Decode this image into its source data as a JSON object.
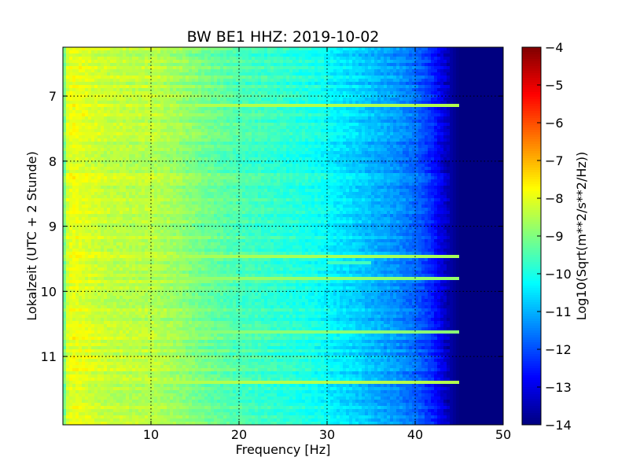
{
  "chart_data": {
    "type": "heatmap",
    "title": "BW BE1 HHZ: 2019-10-02",
    "xlabel": "Frequency [Hz]",
    "ylabel": "Lokalzeit (UTC + 2 Stunde)",
    "xlim": [
      0,
      50
    ],
    "ylim": [
      6.25,
      12.05
    ],
    "y_inverted": true,
    "x_ticks": [
      10,
      20,
      30,
      40,
      50
    ],
    "x_tick_labels": [
      "10",
      "20",
      "30",
      "40",
      "50"
    ],
    "y_ticks": [
      7,
      8,
      9,
      10,
      11
    ],
    "y_tick_labels": [
      "7",
      "8",
      "9",
      "10",
      "11"
    ],
    "grid": true,
    "colormap": "jet",
    "colorbar": {
      "label": "Log10(Sqrt(m**2/s**2/Hz))",
      "min": -14,
      "max": -4,
      "ticks": [
        -4,
        -5,
        -6,
        -7,
        -8,
        -9,
        -10,
        -11,
        -12,
        -13,
        -14
      ],
      "tick_labels": [
        "−4",
        "−5",
        "−6",
        "−7",
        "−8",
        "−9",
        "−10",
        "−11",
        "−12",
        "−13",
        "−14"
      ]
    },
    "spectrum_profile": {
      "frequency_hz": [
        0,
        0.5,
        1,
        2,
        5,
        8,
        10,
        13,
        16,
        20,
        25,
        28,
        30,
        31,
        33,
        35,
        38,
        40,
        41,
        42,
        43,
        44,
        45,
        50
      ],
      "level": [
        -9.5,
        -8.2,
        -7.9,
        -8.0,
        -8.3,
        -8.4,
        -8.4,
        -8.7,
        -9.1,
        -9.5,
        -9.8,
        -10.0,
        -10.2,
        -10.4,
        -10.6,
        -10.9,
        -11.3,
        -11.7,
        -12.0,
        -12.4,
        -13.0,
        -13.6,
        -14.0,
        -14.0
      ]
    },
    "spectral_lines": [
      {
        "time": 7.15,
        "freq_from": 15,
        "freq_to": 45,
        "level": -8.5
      },
      {
        "time": 9.45,
        "freq_from": 14,
        "freq_to": 45,
        "level": -8.6
      },
      {
        "time": 9.55,
        "freq_from": 30,
        "freq_to": 35,
        "level": -9.6
      },
      {
        "time": 9.82,
        "freq_from": 10,
        "freq_to": 45,
        "level": -8.8
      },
      {
        "time": 10.63,
        "freq_from": 10,
        "freq_to": 45,
        "level": -8.9
      },
      {
        "time": 11.4,
        "freq_from": 4,
        "freq_to": 45,
        "level": -8.5
      }
    ]
  },
  "colors": {
    "frame": "#000000",
    "grid": "#000000",
    "background": "#ffffff"
  }
}
